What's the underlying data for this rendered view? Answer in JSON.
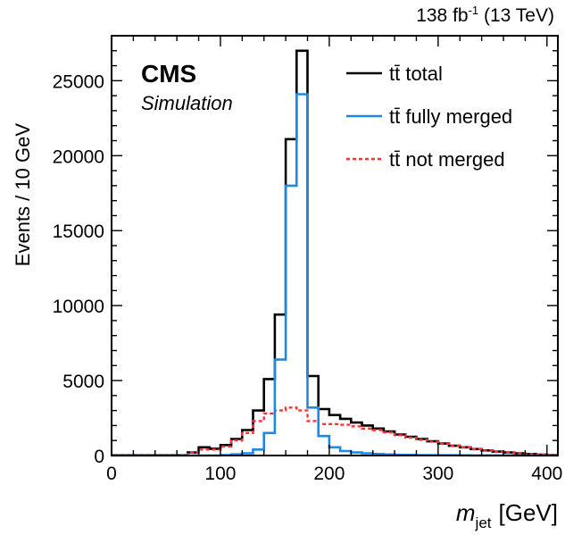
{
  "chart_data": {
    "type": "histogram",
    "lumi_label": {
      "value": "138 fb",
      "exponent": "-1",
      "energy": "(13 TeV)"
    },
    "experiment": "CMS",
    "subtitle": "Simulation",
    "xlabel": {
      "symbol": "m",
      "subscript": "jet",
      "unit": "[GeV]"
    },
    "ylabel": "Events / 10 GeV",
    "xlim": [
      0,
      410
    ],
    "ylim": [
      0,
      28000
    ],
    "x_ticks": [
      0,
      100,
      200,
      300,
      400
    ],
    "y_ticks": [
      0,
      5000,
      10000,
      15000,
      20000,
      25000
    ],
    "bin_width": 10,
    "bin_edges_start": 0,
    "legend_position": "top-right",
    "grid": false,
    "series": [
      {
        "name": "tt̄ total",
        "color": "#000000",
        "style": "solid",
        "values": [
          20,
          20,
          20,
          20,
          20,
          20,
          20,
          200,
          550,
          450,
          700,
          1100,
          1700,
          3000,
          5100,
          9400,
          21100,
          27000,
          5300,
          3100,
          2700,
          2450,
          2200,
          2000,
          1800,
          1600,
          1400,
          1250,
          1100,
          950,
          800,
          650,
          550,
          430,
          340,
          260,
          200,
          140,
          100,
          60,
          30
        ]
      },
      {
        "name": "tt̄ fully merged",
        "color": "#1e88e5",
        "style": "solid",
        "values": [
          0,
          0,
          0,
          0,
          0,
          0,
          0,
          0,
          0,
          0,
          30,
          80,
          150,
          400,
          1500,
          6400,
          18000,
          24100,
          3200,
          1300,
          550,
          300,
          200,
          150,
          100,
          70,
          50,
          40,
          30,
          25,
          20,
          15,
          10,
          8,
          5,
          4,
          3,
          2,
          1,
          1,
          0
        ]
      },
      {
        "name": "tt̄ not merged",
        "color": "#ff3333",
        "style": "dotted",
        "values": [
          20,
          20,
          20,
          20,
          20,
          20,
          20,
          200,
          400,
          400,
          600,
          1000,
          1500,
          2300,
          2800,
          3000,
          3200,
          3000,
          2300,
          2100,
          2100,
          2050,
          1950,
          1800,
          1700,
          1550,
          1350,
          1200,
          1050,
          920,
          780,
          640,
          540,
          420,
          335,
          256,
          197,
          138,
          99,
          59,
          30
        ]
      }
    ]
  }
}
